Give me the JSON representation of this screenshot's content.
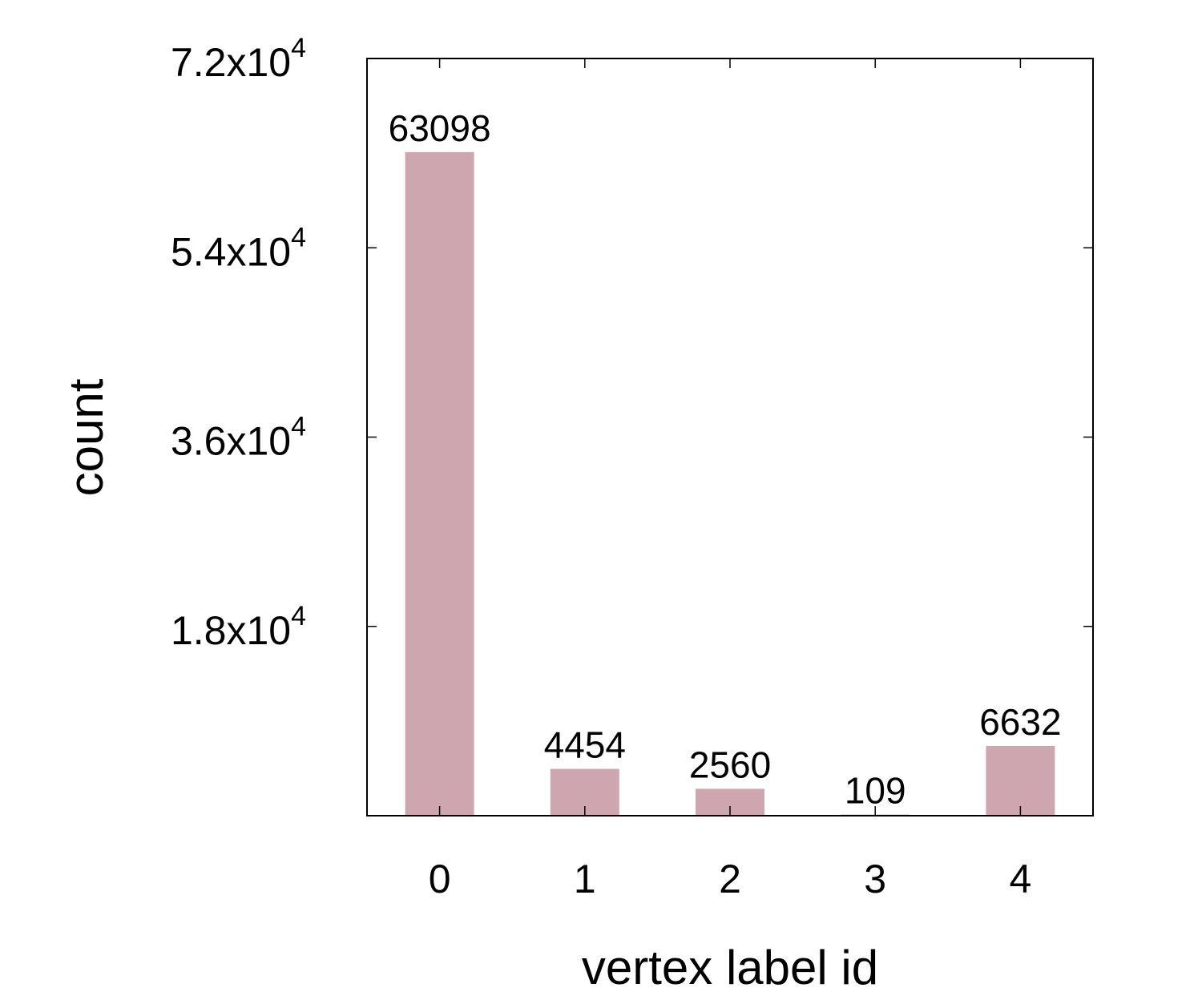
{
  "chart_data": {
    "type": "bar",
    "categories": [
      "0",
      "1",
      "2",
      "3",
      "4"
    ],
    "values": [
      63098,
      4454,
      2560,
      109,
      6632
    ],
    "data_labels": [
      "63098",
      "4454",
      "2560",
      "109",
      "6632"
    ],
    "title": "",
    "xlabel": "vertex label id",
    "ylabel": "count",
    "ylim": [
      0,
      72000
    ],
    "yticks": [
      {
        "value": 18000,
        "mantissa": "1.8x10",
        "exponent": "4"
      },
      {
        "value": 36000,
        "mantissa": "3.6x10",
        "exponent": "4"
      },
      {
        "value": 54000,
        "mantissa": "5.4x10",
        "exponent": "4"
      },
      {
        "value": 72000,
        "mantissa": "7.2x10",
        "exponent": "4"
      }
    ],
    "grid": false,
    "legend": "none",
    "bar_color": "#cea6af"
  }
}
